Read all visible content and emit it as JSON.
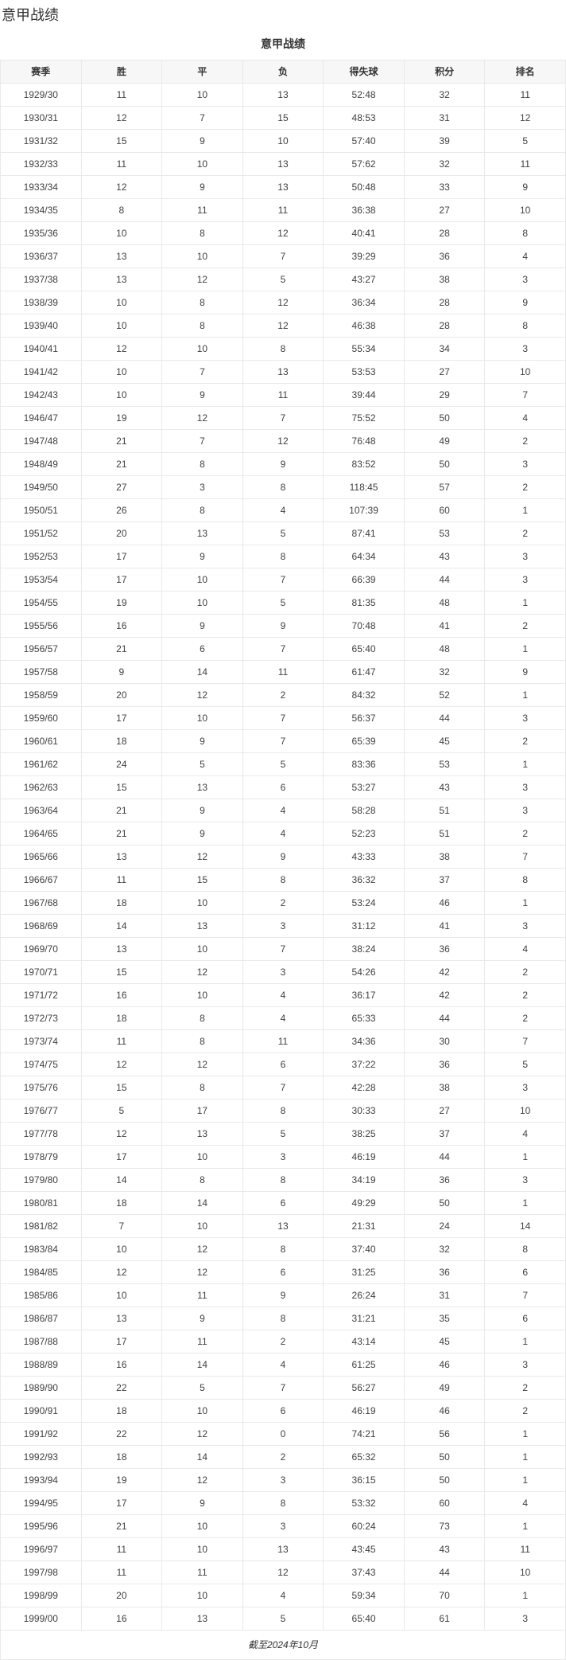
{
  "page": {
    "title": "意甲战绩"
  },
  "table": {
    "caption": "意甲战绩",
    "columns": [
      "赛季",
      "胜",
      "平",
      "负",
      "得失球",
      "积分",
      "排名"
    ],
    "column_keys": [
      "season",
      "wins",
      "draws",
      "losses",
      "goals",
      "points",
      "rank"
    ],
    "rows": [
      [
        "1929/30",
        "11",
        "10",
        "13",
        "52:48",
        "32",
        "11"
      ],
      [
        "1930/31",
        "12",
        "7",
        "15",
        "48:53",
        "31",
        "12"
      ],
      [
        "1931/32",
        "15",
        "9",
        "10",
        "57:40",
        "39",
        "5"
      ],
      [
        "1932/33",
        "11",
        "10",
        "13",
        "57:62",
        "32",
        "11"
      ],
      [
        "1933/34",
        "12",
        "9",
        "13",
        "50:48",
        "33",
        "9"
      ],
      [
        "1934/35",
        "8",
        "11",
        "11",
        "36:38",
        "27",
        "10"
      ],
      [
        "1935/36",
        "10",
        "8",
        "12",
        "40:41",
        "28",
        "8"
      ],
      [
        "1936/37",
        "13",
        "10",
        "7",
        "39:29",
        "36",
        "4"
      ],
      [
        "1937/38",
        "13",
        "12",
        "5",
        "43:27",
        "38",
        "3"
      ],
      [
        "1938/39",
        "10",
        "8",
        "12",
        "36:34",
        "28",
        "9"
      ],
      [
        "1939/40",
        "10",
        "8",
        "12",
        "46:38",
        "28",
        "8"
      ],
      [
        "1940/41",
        "12",
        "10",
        "8",
        "55:34",
        "34",
        "3"
      ],
      [
        "1941/42",
        "10",
        "7",
        "13",
        "53:53",
        "27",
        "10"
      ],
      [
        "1942/43",
        "10",
        "9",
        "11",
        "39:44",
        "29",
        "7"
      ],
      [
        "1946/47",
        "19",
        "12",
        "7",
        "75:52",
        "50",
        "4"
      ],
      [
        "1947/48",
        "21",
        "7",
        "12",
        "76:48",
        "49",
        "2"
      ],
      [
        "1948/49",
        "21",
        "8",
        "9",
        "83:52",
        "50",
        "3"
      ],
      [
        "1949/50",
        "27",
        "3",
        "8",
        "118:45",
        "57",
        "2"
      ],
      [
        "1950/51",
        "26",
        "8",
        "4",
        "107:39",
        "60",
        "1"
      ],
      [
        "1951/52",
        "20",
        "13",
        "5",
        "87:41",
        "53",
        "2"
      ],
      [
        "1952/53",
        "17",
        "9",
        "8",
        "64:34",
        "43",
        "3"
      ],
      [
        "1953/54",
        "17",
        "10",
        "7",
        "66:39",
        "44",
        "3"
      ],
      [
        "1954/55",
        "19",
        "10",
        "5",
        "81:35",
        "48",
        "1"
      ],
      [
        "1955/56",
        "16",
        "9",
        "9",
        "70:48",
        "41",
        "2"
      ],
      [
        "1956/57",
        "21",
        "6",
        "7",
        "65:40",
        "48",
        "1"
      ],
      [
        "1957/58",
        "9",
        "14",
        "11",
        "61:47",
        "32",
        "9"
      ],
      [
        "1958/59",
        "20",
        "12",
        "2",
        "84:32",
        "52",
        "1"
      ],
      [
        "1959/60",
        "17",
        "10",
        "7",
        "56:37",
        "44",
        "3"
      ],
      [
        "1960/61",
        "18",
        "9",
        "7",
        "65:39",
        "45",
        "2"
      ],
      [
        "1961/62",
        "24",
        "5",
        "5",
        "83:36",
        "53",
        "1"
      ],
      [
        "1962/63",
        "15",
        "13",
        "6",
        "53:27",
        "43",
        "3"
      ],
      [
        "1963/64",
        "21",
        "9",
        "4",
        "58:28",
        "51",
        "3"
      ],
      [
        "1964/65",
        "21",
        "9",
        "4",
        "52:23",
        "51",
        "2"
      ],
      [
        "1965/66",
        "13",
        "12",
        "9",
        "43:33",
        "38",
        "7"
      ],
      [
        "1966/67",
        "11",
        "15",
        "8",
        "36:32",
        "37",
        "8"
      ],
      [
        "1967/68",
        "18",
        "10",
        "2",
        "53:24",
        "46",
        "1"
      ],
      [
        "1968/69",
        "14",
        "13",
        "3",
        "31:12",
        "41",
        "3"
      ],
      [
        "1969/70",
        "13",
        "10",
        "7",
        "38:24",
        "36",
        "4"
      ],
      [
        "1970/71",
        "15",
        "12",
        "3",
        "54:26",
        "42",
        "2"
      ],
      [
        "1971/72",
        "16",
        "10",
        "4",
        "36:17",
        "42",
        "2"
      ],
      [
        "1972/73",
        "18",
        "8",
        "4",
        "65:33",
        "44",
        "2"
      ],
      [
        "1973/74",
        "11",
        "8",
        "11",
        "34:36",
        "30",
        "7"
      ],
      [
        "1974/75",
        "12",
        "12",
        "6",
        "37:22",
        "36",
        "5"
      ],
      [
        "1975/76",
        "15",
        "8",
        "7",
        "42:28",
        "38",
        "3"
      ],
      [
        "1976/77",
        "5",
        "17",
        "8",
        "30:33",
        "27",
        "10"
      ],
      [
        "1977/78",
        "12",
        "13",
        "5",
        "38:25",
        "37",
        "4"
      ],
      [
        "1978/79",
        "17",
        "10",
        "3",
        "46:19",
        "44",
        "1"
      ],
      [
        "1979/80",
        "14",
        "8",
        "8",
        "34:19",
        "36",
        "3"
      ],
      [
        "1980/81",
        "18",
        "14",
        "6",
        "49:29",
        "50",
        "1"
      ],
      [
        "1981/82",
        "7",
        "10",
        "13",
        "21:31",
        "24",
        "14"
      ],
      [
        "1983/84",
        "10",
        "12",
        "8",
        "37:40",
        "32",
        "8"
      ],
      [
        "1984/85",
        "12",
        "12",
        "6",
        "31:25",
        "36",
        "6"
      ],
      [
        "1985/86",
        "10",
        "11",
        "9",
        "26:24",
        "31",
        "7"
      ],
      [
        "1986/87",
        "13",
        "9",
        "8",
        "31:21",
        "35",
        "6"
      ],
      [
        "1987/88",
        "17",
        "11",
        "2",
        "43:14",
        "45",
        "1"
      ],
      [
        "1988/89",
        "16",
        "14",
        "4",
        "61:25",
        "46",
        "3"
      ],
      [
        "1989/90",
        "22",
        "5",
        "7",
        "56:27",
        "49",
        "2"
      ],
      [
        "1990/91",
        "18",
        "10",
        "6",
        "46:19",
        "46",
        "2"
      ],
      [
        "1991/92",
        "22",
        "12",
        "0",
        "74:21",
        "56",
        "1"
      ],
      [
        "1992/93",
        "18",
        "14",
        "2",
        "65:32",
        "50",
        "1"
      ],
      [
        "1993/94",
        "19",
        "12",
        "3",
        "36:15",
        "50",
        "1"
      ],
      [
        "1994/95",
        "17",
        "9",
        "8",
        "53:32",
        "60",
        "4"
      ],
      [
        "1995/96",
        "21",
        "10",
        "3",
        "60:24",
        "73",
        "1"
      ],
      [
        "1996/97",
        "11",
        "10",
        "13",
        "43:45",
        "43",
        "11"
      ],
      [
        "1997/98",
        "11",
        "11",
        "12",
        "37:43",
        "44",
        "10"
      ],
      [
        "1998/99",
        "20",
        "10",
        "4",
        "59:34",
        "70",
        "1"
      ],
      [
        "1999/00",
        "16",
        "13",
        "5",
        "65:40",
        "61",
        "3"
      ]
    ],
    "footer": "截至2024年10月"
  },
  "colors": {
    "header_bg": "#f7f7f7",
    "border": "#e9e9e9",
    "title_text": "#333333",
    "cell_text": "#404040"
  }
}
